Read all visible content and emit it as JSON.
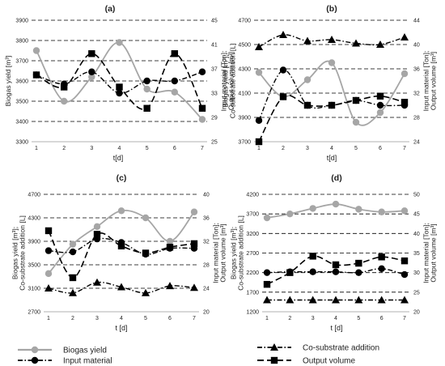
{
  "chart_data": [
    {
      "type": "line",
      "title": "(a)",
      "xlabel": "t[d]",
      "ylabel": "Biogas yield [m³]",
      "y2label": "Input material [Ton]; Output volume [m³]",
      "x": [
        1,
        2,
        3,
        4,
        5,
        6,
        7
      ],
      "ylim": [
        3300,
        3900
      ],
      "yticks": [
        3300,
        3400,
        3500,
        3600,
        3700,
        3800,
        3900
      ],
      "y2lim": [
        25,
        45
      ],
      "y2ticks": [
        25,
        29,
        33,
        37,
        41,
        45
      ],
      "grid": true,
      "series": [
        {
          "name": "Biogas yield",
          "axis": "left",
          "style": "gray-circle",
          "values": [
            3750,
            3500,
            3620,
            3790,
            3560,
            3545,
            3410
          ]
        },
        {
          "name": "Input material",
          "axis": "right",
          "style": "dash-dot-circle",
          "values": [
            36,
            34.5,
            36.5,
            33,
            35,
            35,
            36.5
          ]
        },
        {
          "name": "Output volume",
          "axis": "right",
          "style": "dash-square",
          "values": [
            36,
            34,
            39.5,
            34,
            30.5,
            39.5,
            30.5
          ]
        }
      ]
    },
    {
      "type": "line",
      "title": "(b)",
      "xlabel": "t[d]",
      "ylabel": "Biogas yield [m³]; Co-substrate addition [L]",
      "y2label": "Input material [Ton]; Output volume [m³]",
      "x": [
        1,
        2,
        3,
        4,
        5,
        6,
        7
      ],
      "ylim": [
        3700,
        4700
      ],
      "yticks": [
        3700,
        3900,
        4100,
        4300,
        4500,
        4700
      ],
      "y2lim": [
        24,
        44
      ],
      "y2ticks": [
        24,
        28,
        32,
        36,
        40,
        44
      ],
      "grid": true,
      "series": [
        {
          "name": "Biogas yield",
          "axis": "left",
          "style": "gray-circle",
          "values": [
            4270,
            4070,
            4210,
            4350,
            3860,
            3940,
            4260
          ]
        },
        {
          "name": "Co-substrate addition",
          "axis": "left",
          "style": "dash-dot-triangle",
          "values": [
            4480,
            4580,
            4530,
            4540,
            4510,
            4500,
            4560
          ]
        },
        {
          "name": "Input material",
          "axis": "right",
          "style": "dash-dot-circle",
          "values": [
            27.5,
            35.8,
            30,
            30,
            30.8,
            30,
            30
          ]
        },
        {
          "name": "Output volume",
          "axis": "right",
          "style": "dash-square",
          "values": [
            24,
            31.4,
            30,
            30,
            30.8,
            31.5,
            30.5
          ]
        }
      ]
    },
    {
      "type": "line",
      "title": "(c)",
      "xlabel": "t [d]",
      "ylabel": "Biogas yield [m³]; Co-substrate addition [L]",
      "y2label": "Input material [Ton]; Output volume [m³]",
      "x": [
        1,
        2,
        3,
        4,
        5,
        6,
        7
      ],
      "ylim": [
        2700,
        4700
      ],
      "yticks": [
        2700,
        3100,
        3500,
        3900,
        4300,
        4700
      ],
      "y2lim": [
        20,
        40
      ],
      "y2ticks": [
        20,
        24,
        28,
        32,
        36,
        40
      ],
      "grid": true,
      "series": [
        {
          "name": "Biogas yield",
          "axis": "left",
          "style": "gray-circle",
          "values": [
            3350,
            3850,
            4150,
            4420,
            4300,
            3900,
            4400
          ]
        },
        {
          "name": "Co-substrate addition",
          "axis": "left",
          "style": "dash-dot-triangle",
          "values": [
            3100,
            3020,
            3200,
            3120,
            3020,
            3140,
            3110
          ]
        },
        {
          "name": "Input material",
          "axis": "right",
          "style": "dash-dot-circle",
          "values": [
            30.4,
            30.2,
            32.4,
            31.8,
            29.8,
            30.8,
            30.8
          ]
        },
        {
          "name": "Output volume",
          "axis": "right",
          "style": "dash-square",
          "values": [
            33.8,
            25.8,
            33.2,
            31.2,
            30,
            31,
            31.6
          ]
        }
      ]
    },
    {
      "type": "line",
      "title": "(d)",
      "xlabel": "t [d]",
      "ylabel": "Biogas yield [m³]; Co-substrate addition [L]",
      "y2label": "Input material [Ton]; Output volume [m³]",
      "x": [
        1,
        2,
        3,
        4,
        5,
        6,
        7
      ],
      "ylim": [
        1200,
        4200
      ],
      "yticks": [
        1200,
        1700,
        2200,
        2700,
        3200,
        3700,
        4200
      ],
      "y2lim": [
        20,
        50
      ],
      "y2ticks": [
        20,
        25,
        30,
        35,
        40,
        45,
        50
      ],
      "grid": true,
      "series": [
        {
          "name": "Biogas yield",
          "axis": "left",
          "style": "gray-circle",
          "values": [
            3600,
            3700,
            3840,
            3950,
            3820,
            3750,
            3780
          ]
        },
        {
          "name": "Co-substrate addition",
          "axis": "left",
          "style": "dash-dot-triangle",
          "values": [
            1500,
            1500,
            1500,
            1500,
            1500,
            1500,
            1500
          ]
        },
        {
          "name": "Input material",
          "axis": "right",
          "style": "dash-dot-circle",
          "values": [
            30,
            30.2,
            30.2,
            30.2,
            30,
            31,
            29.5
          ]
        },
        {
          "name": "Output volume",
          "axis": "right",
          "style": "dash-square",
          "values": [
            27,
            30,
            34.2,
            32,
            32.4,
            34,
            33
          ]
        }
      ]
    }
  ],
  "legend": {
    "items": [
      {
        "name": "Biogas yield",
        "style": "gray-circle"
      },
      {
        "name": "Co-substrate addition",
        "style": "dash-dot-triangle"
      },
      {
        "name": "Input material",
        "style": "dash-dot-circle"
      },
      {
        "name": "Output volume",
        "style": "dash-square"
      }
    ]
  },
  "colors": {
    "biogas": "#a6a6a6",
    "black": "#000000",
    "grid": "#000000"
  }
}
